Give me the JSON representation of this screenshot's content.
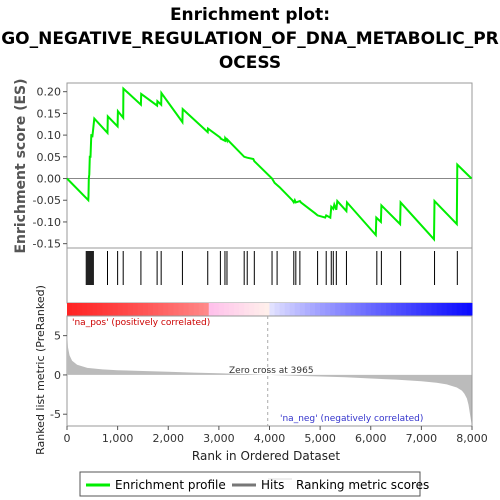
{
  "chart_data": {
    "type": "line",
    "title_lines": [
      "Enrichment plot:",
      "GO_NEGATIVE_REGULATION_OF_DNA_METABOLIC_PR",
      "OCESS"
    ],
    "top_panel": {
      "ylabel": "Enrichment score (ES)",
      "ylim": [
        -0.16,
        0.22
      ],
      "yticks": [
        "0.20",
        "0.15",
        "0.10",
        "0.05",
        "0.00",
        "-0.05",
        "-0.10",
        "-0.15"
      ],
      "ytick_values": [
        0.2,
        0.15,
        0.1,
        0.05,
        0.0,
        -0.05,
        -0.1,
        -0.15
      ],
      "series": [
        {
          "name": "Enrichment profile",
          "color": "#00ee00",
          "x": [
            0,
            420,
            425,
            430,
            440,
            450,
            465,
            480,
            490,
            500,
            540,
            800,
            805,
            1000,
            1005,
            1110,
            1115,
            1460,
            1465,
            1780,
            1785,
            1860,
            1865,
            2280,
            2285,
            2780,
            2785,
            3030,
            3035,
            3120,
            3125,
            3160,
            3165,
            3500,
            3560,
            3680,
            3700,
            4050,
            4100,
            4200,
            4450,
            4480,
            4500,
            4520,
            4600,
            4620,
            4900,
            4950,
            5100,
            5120,
            5200,
            5220,
            5260,
            5280,
            5320,
            5340,
            5520,
            5530,
            6100,
            6110,
            6200,
            6210,
            6580,
            6590,
            7250,
            7260,
            7700,
            7710,
            7990
          ],
          "y": [
            0.0,
            -0.05,
            -0.04,
            0.0,
            0.01,
            0.05,
            0.05,
            0.1,
            0.1,
            0.095,
            0.138,
            0.105,
            0.143,
            0.12,
            0.155,
            0.14,
            0.207,
            0.17,
            0.195,
            0.168,
            0.178,
            0.17,
            0.197,
            0.13,
            0.16,
            0.107,
            0.115,
            0.094,
            0.092,
            0.087,
            0.093,
            0.087,
            0.09,
            0.05,
            0.048,
            0.045,
            0.04,
            0.0,
            -0.01,
            -0.02,
            -0.05,
            -0.055,
            -0.05,
            -0.055,
            -0.052,
            -0.055,
            -0.08,
            -0.085,
            -0.09,
            -0.085,
            -0.09,
            -0.065,
            -0.07,
            -0.06,
            -0.072,
            -0.052,
            -0.075,
            -0.055,
            -0.13,
            -0.09,
            -0.1,
            -0.062,
            -0.105,
            -0.055,
            -0.14,
            -0.052,
            -0.105,
            0.032,
            0.0
          ]
        }
      ]
    },
    "hits": [
      380,
      400,
      420,
      440,
      460,
      480,
      500,
      520,
      800,
      1000,
      1110,
      1460,
      1780,
      1860,
      2280,
      2780,
      3030,
      3120,
      3160,
      3500,
      3560,
      3700,
      4050,
      4150,
      4480,
      4520,
      4600,
      4950,
      5120,
      5220,
      5260,
      5320,
      5520,
      6120,
      6210,
      6590,
      7260,
      7710
    ],
    "bottom_panel": {
      "ylabel": "Ranked list metric (PreRanked)",
      "ylim": [
        -6.5,
        7.5
      ],
      "yticks": [
        "5",
        "0",
        "-5"
      ],
      "ytick_values": [
        5,
        0,
        -5
      ],
      "pos_label": "'na_pos' (positively correlated)",
      "neg_label": "'na_neg' (negatively correlated)",
      "zero_cross_label": "Zero cross at 3965",
      "zero_cross_x": 3965,
      "metric_points_x": [
        0,
        20,
        50,
        100,
        200,
        400,
        700,
        1000,
        1500,
        2000,
        2500,
        3000,
        3500,
        3965,
        4500,
        5000,
        5500,
        6000,
        6500,
        7000,
        7300,
        7500,
        7700,
        7800,
        7850,
        7900,
        7930,
        7960,
        7990
      ],
      "metric_points_y": [
        5.8,
        3.5,
        2.5,
        1.8,
        1.3,
        0.9,
        0.7,
        0.6,
        0.5,
        0.4,
        0.3,
        0.22,
        0.12,
        0.0,
        -0.1,
        -0.2,
        -0.3,
        -0.45,
        -0.6,
        -0.8,
        -1.0,
        -1.2,
        -1.6,
        -2.0,
        -2.4,
        -3.0,
        -3.8,
        -5.0,
        -6.2
      ]
    },
    "xaxis": {
      "label": "Rank in Ordered Dataset",
      "xlim": [
        0,
        8000
      ],
      "ticks": [
        "0",
        "1,000",
        "2,000",
        "3,000",
        "4,000",
        "5,000",
        "6,000",
        "7,000",
        "8,000"
      ],
      "tick_values": [
        0,
        1000,
        2000,
        3000,
        4000,
        5000,
        6000,
        7000,
        8000
      ]
    },
    "legend": {
      "position": "bottom",
      "items": [
        {
          "label": "Enrichment profile",
          "color": "#00ee00"
        },
        {
          "label": "Hits",
          "color": "#777777"
        },
        {
          "label": "Ranking metric scores",
          "color": "#cccccc"
        }
      ]
    },
    "colors": {
      "profile": "#00ee00",
      "hits": "#000000",
      "metric_fill": "#bbbbbb",
      "pos_text": "#cc0000",
      "neg_text": "#3333cc",
      "heat_pos": "#ff2222",
      "heat_neg": "#2222ff"
    }
  }
}
